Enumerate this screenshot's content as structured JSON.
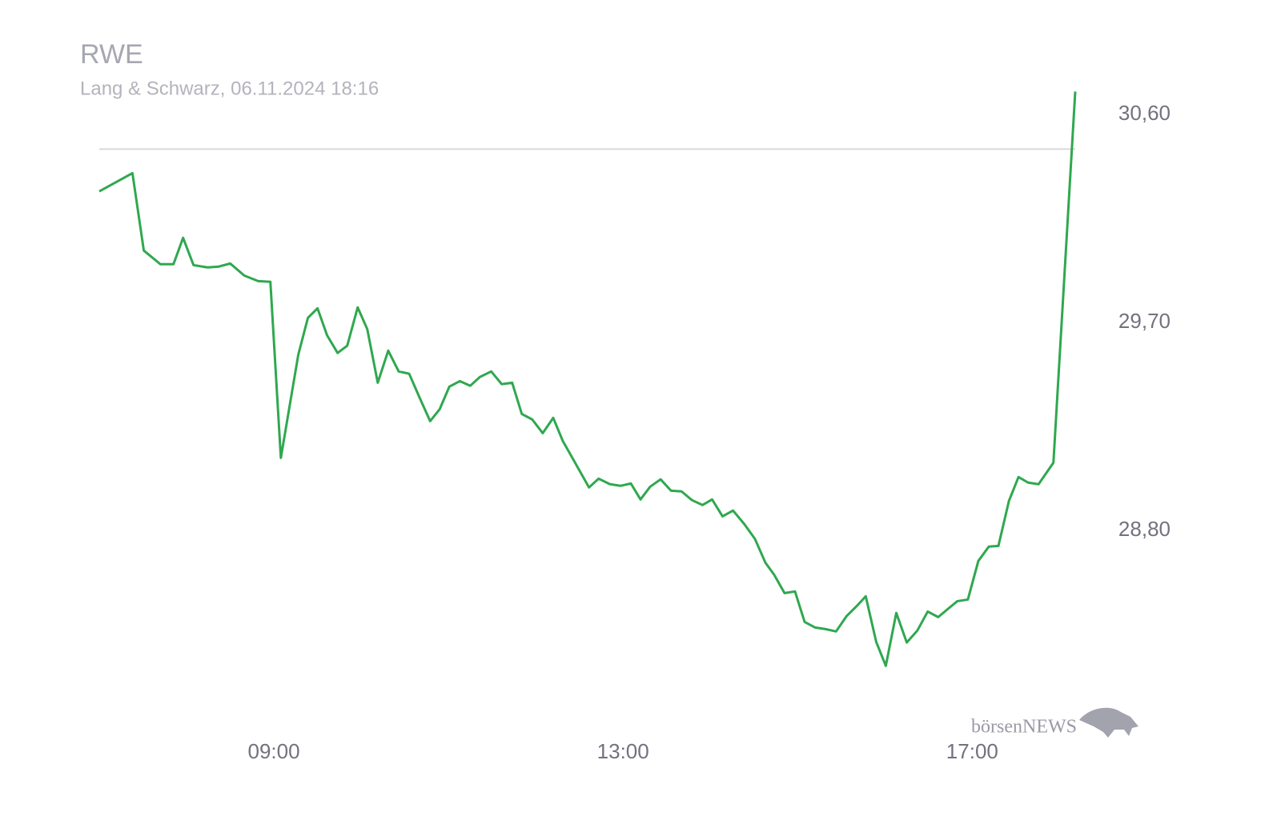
{
  "chart_data": {
    "type": "line",
    "title": "RWE",
    "subtitle": "Lang & Schwarz, 06.11.2024 18:16",
    "watermark": "börsenNEWS",
    "x": [
      7.0,
      7.38,
      7.51,
      7.7,
      7.85,
      7.96,
      8.08,
      8.24,
      8.36,
      8.5,
      8.66,
      8.82,
      8.96,
      9.08,
      9.28,
      9.39,
      9.5,
      9.61,
      9.73,
      9.84,
      9.96,
      10.07,
      10.19,
      10.31,
      10.43,
      10.55,
      10.67,
      10.79,
      10.9,
      11.01,
      11.13,
      11.25,
      11.36,
      11.49,
      11.61,
      11.73,
      11.84,
      11.96,
      12.08,
      12.2,
      12.31,
      12.43,
      12.61,
      12.72,
      12.85,
      12.97,
      13.09,
      13.2,
      13.31,
      13.43,
      13.55,
      13.67,
      13.79,
      13.91,
      14.02,
      14.14,
      14.26,
      14.39,
      14.51,
      14.63,
      14.73,
      14.85,
      14.97,
      15.08,
      15.2,
      15.32,
      15.44,
      15.56,
      15.68,
      15.78,
      15.9,
      16.01,
      16.13,
      16.25,
      16.37,
      16.49,
      16.61,
      16.73,
      16.83,
      16.95,
      17.07,
      17.19,
      17.3,
      17.42,
      17.53,
      17.64,
      17.76,
      17.93,
      18.18
    ],
    "series": [
      {
        "color": "#2fa84f",
        "values": [
          30.268,
          30.347,
          30.012,
          29.953,
          29.953,
          30.067,
          29.949,
          29.939,
          29.942,
          29.956,
          29.904,
          29.88,
          29.877,
          29.115,
          29.562,
          29.721,
          29.762,
          29.645,
          29.569,
          29.6,
          29.766,
          29.672,
          29.44,
          29.579,
          29.489,
          29.479,
          29.375,
          29.274,
          29.326,
          29.423,
          29.447,
          29.427,
          29.465,
          29.489,
          29.434,
          29.44,
          29.305,
          29.281,
          29.222,
          29.288,
          29.188,
          29.108,
          28.987,
          29.025,
          29.001,
          28.994,
          29.004,
          28.935,
          28.99,
          29.022,
          28.973,
          28.97,
          28.932,
          28.911,
          28.935,
          28.862,
          28.887,
          28.828,
          28.765,
          28.662,
          28.61,
          28.53,
          28.537,
          28.405,
          28.381,
          28.374,
          28.364,
          28.43,
          28.475,
          28.516,
          28.319,
          28.215,
          28.444,
          28.316,
          28.367,
          28.45,
          28.426,
          28.464,
          28.495,
          28.502,
          28.669,
          28.731,
          28.734,
          28.928,
          29.032,
          29.008,
          29.001,
          29.094,
          30.7
        ]
      }
    ],
    "reference_line": 30.451,
    "xlim": [
      7,
      18.18
    ],
    "xticks": [
      {
        "value": 9,
        "label": "09:00"
      },
      {
        "value": 13,
        "label": "13:00"
      },
      {
        "value": 17,
        "label": "17:00"
      }
    ],
    "ylim": [
      28.05,
      30.75
    ],
    "yticks": [
      {
        "value": 28.8,
        "label": "28,80"
      },
      {
        "value": 29.7,
        "label": "29,70"
      },
      {
        "value": 30.6,
        "label": "30,60"
      }
    ]
  }
}
